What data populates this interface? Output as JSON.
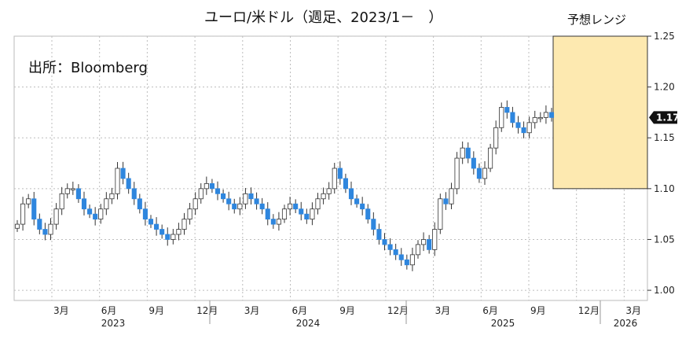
{
  "chart_data": {
    "type": "candlestick",
    "title": "ユーロ/米ドル（週足、2023/1－　）",
    "source": "出所：Bloomberg",
    "forecast_label": "予想レンジ",
    "forecast_range": {
      "low": 1.1,
      "high": 1.25
    },
    "last_value_label": "1.17",
    "last_value": 1.17,
    "ylim": [
      0.99,
      1.25
    ],
    "yticks": [
      {
        "value": 1.0,
        "label": "1.00"
      },
      {
        "value": 1.05,
        "label": "1.05"
      },
      {
        "value": 1.1,
        "label": "1.10"
      },
      {
        "value": 1.15,
        "label": "1.15"
      },
      {
        "value": 1.2,
        "label": "1.20"
      },
      {
        "value": 1.25,
        "label": "1.25"
      }
    ],
    "month_ticks": [
      "3月",
      "6月",
      "9月",
      "12月",
      "3月",
      "6月",
      "9月",
      "12月",
      "3月",
      "6月",
      "9月",
      "12月",
      "3月"
    ],
    "years": [
      "2023",
      "2024",
      "2025",
      "2026"
    ],
    "colors": {
      "up": "#ffffff",
      "down": "#2e86de",
      "forecast_fill": "#fde9b0",
      "forecast_stroke": "#333333"
    },
    "path": [
      1.065,
      1.085,
      1.09,
      1.07,
      1.06,
      1.055,
      1.065,
      1.08,
      1.095,
      1.1,
      1.1,
      1.09,
      1.08,
      1.075,
      1.07,
      1.08,
      1.09,
      1.095,
      1.12,
      1.11,
      1.1,
      1.09,
      1.08,
      1.07,
      1.065,
      1.06,
      1.055,
      1.05,
      1.055,
      1.06,
      1.07,
      1.08,
      1.09,
      1.1,
      1.105,
      1.1,
      1.095,
      1.09,
      1.085,
      1.08,
      1.085,
      1.095,
      1.09,
      1.085,
      1.08,
      1.07,
      1.065,
      1.07,
      1.08,
      1.085,
      1.08,
      1.075,
      1.07,
      1.08,
      1.09,
      1.095,
      1.1,
      1.12,
      1.11,
      1.1,
      1.09,
      1.085,
      1.08,
      1.07,
      1.06,
      1.05,
      1.045,
      1.04,
      1.035,
      1.03,
      1.025,
      1.035,
      1.045,
      1.05,
      1.04,
      1.06,
      1.09,
      1.085,
      1.1,
      1.13,
      1.14,
      1.13,
      1.12,
      1.11,
      1.12,
      1.14,
      1.16,
      1.18,
      1.175,
      1.165,
      1.16,
      1.155,
      1.165,
      1.17,
      1.17,
      1.175,
      1.17
    ]
  }
}
